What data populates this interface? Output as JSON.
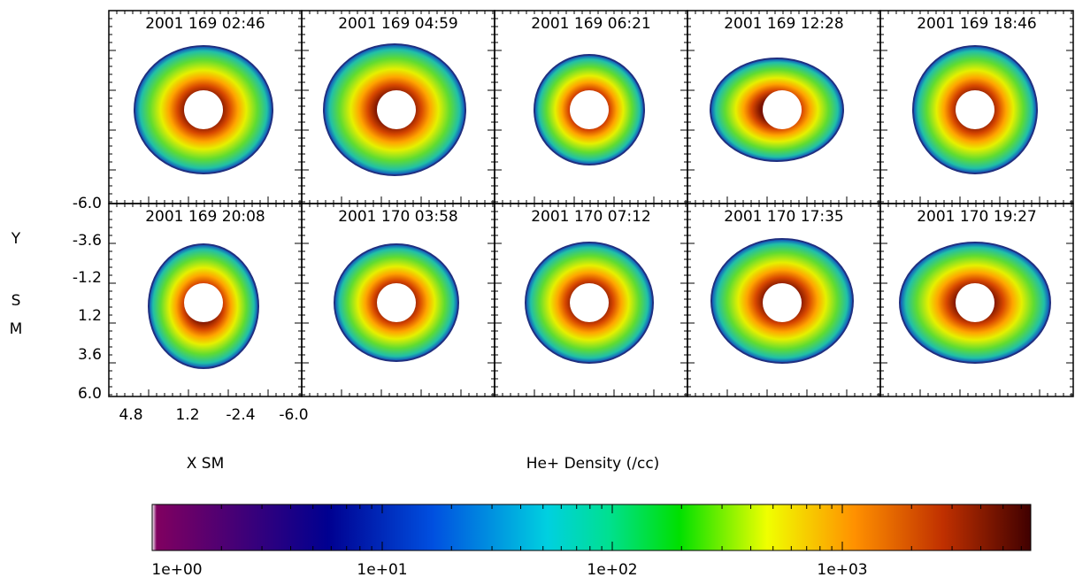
{
  "panels": [
    {
      "title": "2001 169 02:46"
    },
    {
      "title": "2001 169 04:59"
    },
    {
      "title": "2001 169 06:21"
    },
    {
      "title": "2001 169 12:28"
    },
    {
      "title": "2001 169 18:46"
    },
    {
      "title": "2001 169 20:08"
    },
    {
      "title": "2001 170 03:58"
    },
    {
      "title": "2001 170 07:12"
    },
    {
      "title": "2001 170 17:35"
    },
    {
      "title": "2001 170 19:27"
    }
  ],
  "y_axis": {
    "label_letters": [
      "Y",
      "S",
      "M"
    ],
    "ticks": [
      "-6.0",
      "-3.6",
      "-1.2",
      "1.2",
      "3.6",
      "6.0"
    ]
  },
  "x_axis": {
    "label": "X SM",
    "ticks": [
      "4.8",
      "1.2",
      "-2.4",
      "-6.0"
    ]
  },
  "colorbar": {
    "title": "He+ Density (/cc)",
    "ticks": [
      "1e+00",
      "1e+01",
      "1e+02",
      "1e+03"
    ]
  }
}
